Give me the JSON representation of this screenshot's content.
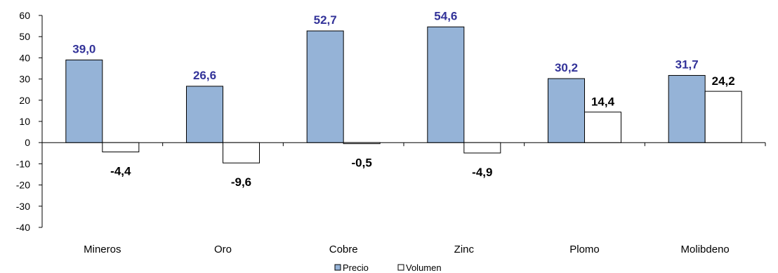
{
  "chart_data": {
    "type": "bar",
    "categories": [
      "Mineros",
      "Oro",
      "Cobre",
      "Zinc",
      "Plomo",
      "Molibdeno"
    ],
    "series": [
      {
        "name": "Precio",
        "values": [
          39.0,
          26.6,
          52.7,
          54.6,
          30.2,
          31.7
        ],
        "labels": [
          "39,0",
          "26,6",
          "52,7",
          "54,6",
          "30,2",
          "31,7"
        ],
        "color": "#95b3d7",
        "label_color": "#333399"
      },
      {
        "name": "Volumen",
        "values": [
          -4.4,
          -9.6,
          -0.5,
          -4.9,
          14.4,
          24.2
        ],
        "labels": [
          "-4,4",
          "-9,6",
          "-0,5",
          "-4,9",
          "14,4",
          "24,2"
        ],
        "color": "#ffffff",
        "label_color": "#000000"
      }
    ],
    "ylim": [
      -40,
      60
    ],
    "yticks": [
      60,
      50,
      40,
      30,
      20,
      10,
      0,
      -10,
      -20,
      -30,
      -40
    ],
    "grid": false,
    "legend_position": "bottom-center"
  }
}
